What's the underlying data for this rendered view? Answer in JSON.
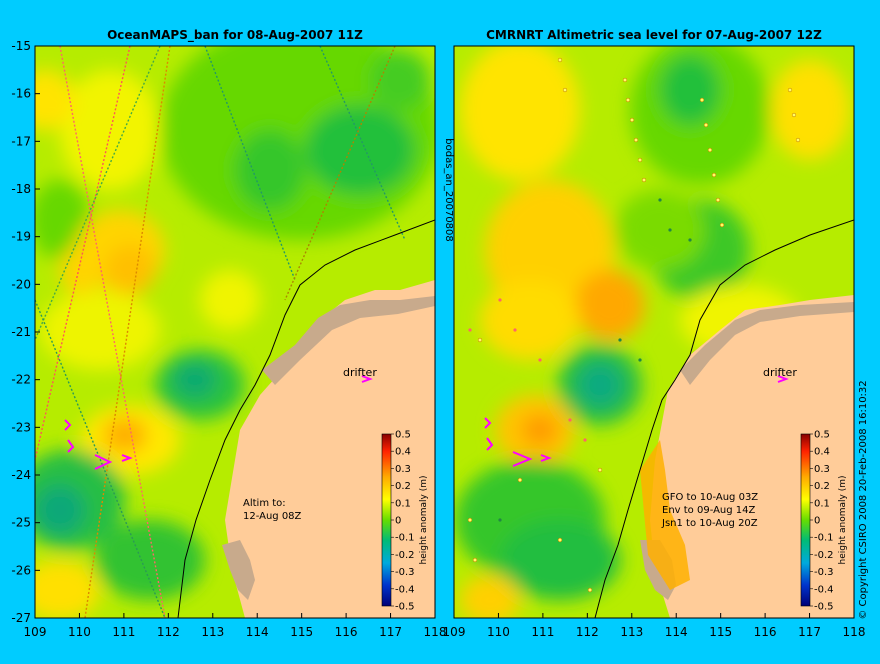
{
  "left_panel": {
    "title": "OceanMAPS_ban for 08-Aug-2007 11Z",
    "x_ticks": [
      "109",
      "110",
      "111",
      "112",
      "113",
      "114",
      "115",
      "116",
      "117",
      "118"
    ],
    "y_ticks": [
      "-15",
      "-16",
      "-17",
      "-18",
      "-19",
      "-20",
      "-21",
      "-22",
      "-23",
      "-24",
      "-25",
      "-26",
      "-27"
    ],
    "drifter_label": "drifter",
    "note_lines": [
      "Altim to:",
      "12-Aug 08Z"
    ],
    "colorbar_ticks": [
      "0.5",
      "0.4",
      "0.3",
      "0.2",
      "0.1",
      "0",
      "-0.1",
      "-0.2",
      "-0.3",
      "-0.4",
      "-0.5"
    ],
    "colorbar_label": "height anomaly (m)"
  },
  "right_panel": {
    "title": "CMRNRT Altimetric sea level  for 07-Aug-2007 12Z",
    "x_ticks": [
      "109",
      "110",
      "111",
      "112",
      "113",
      "114",
      "115",
      "116",
      "117",
      "118"
    ],
    "drifter_label": "drifter",
    "note_lines": [
      "GFO to 10-Aug 03Z",
      "Env to 09-Aug 14Z",
      "Jsn1 to 10-Aug 20Z"
    ],
    "colorbar_ticks": [
      "0.5",
      "0.4",
      "0.3",
      "0.2",
      "0.1",
      "0",
      "-0.1",
      "-0.2",
      "-0.3",
      "-0.4",
      "-0.5"
    ],
    "colorbar_label": "height anomaly (m)"
  },
  "side_label": "bodas_an_20070808",
  "copyright": "© Copyright CSIRO 2008   20-Feb-2008 16:10:32",
  "colors": {
    "background": "#00ccff",
    "land": "#ffcc99",
    "coast_shelf": "#c8aa8c",
    "drifter": "#ff00ff",
    "field_base": "#b6ec00"
  }
}
